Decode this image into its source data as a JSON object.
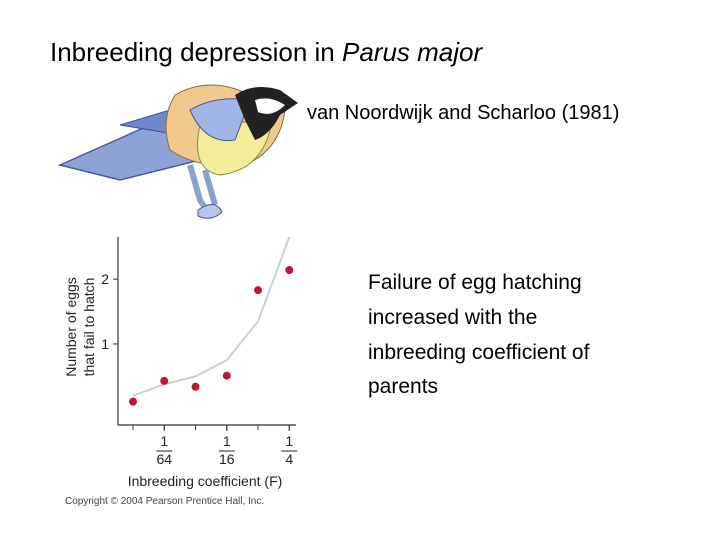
{
  "slide": {
    "title": {
      "text": "Inbreeding depression in ",
      "italic": "Parus major"
    },
    "citation": "van Noordwijk and Scharloo (1981)",
    "body": [
      "Failure of egg hatching",
      "increased with the",
      "inbreeding coefficient of",
      "parents"
    ],
    "copyright": "Copyright © 2004 Pearson Prentice Hall, Inc."
  },
  "chart_data": {
    "type": "scatter",
    "ylabel": [
      "Number of eggs",
      "that fail to hatch"
    ],
    "xlabel": "Inbreeding coefficient (F)",
    "x": [
      0.0078125,
      0.015625,
      0.03125,
      0.0625,
      0.125,
      0.25
    ],
    "values": [
      0.11,
      0.43,
      0.34,
      0.51,
      1.83,
      2.14
    ],
    "curve": [
      0.2,
      0.38,
      0.5,
      0.75,
      1.35,
      2.65
    ],
    "color": "#c0143c",
    "curve_color": "#cfcfcf",
    "xscale": "log",
    "xlim": [
      0.0056,
      0.29
    ],
    "ylim": [
      -0.25,
      2.65
    ],
    "xticks": [
      {
        "value": 0.015625,
        "label": "1/64"
      },
      {
        "value": 0.0625,
        "label": "1/16"
      },
      {
        "value": 0.25,
        "label": "1/4"
      }
    ],
    "yticks": [
      1,
      2
    ]
  }
}
